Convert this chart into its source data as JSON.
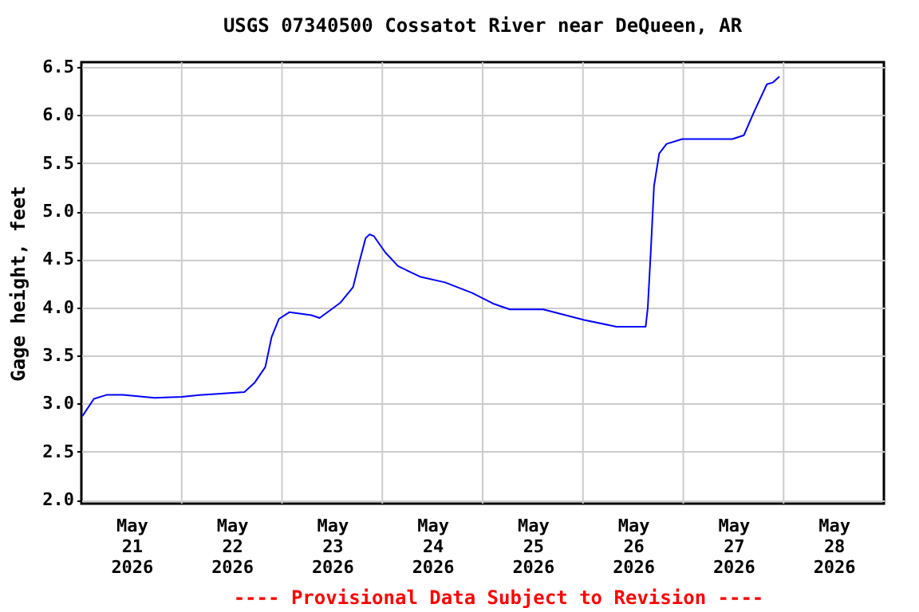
{
  "chart_data": {
    "type": "line",
    "title": "USGS 07340500 Cossatot River near DeQueen, AR",
    "ylabel": "Gage height, feet",
    "annotations": [
      "---- Provisional Data Subject to Revision ----"
    ],
    "x": [
      "2026-05-21T00:15",
      "2026-05-21T03:00",
      "2026-05-21T06:00",
      "2026-05-21T10:00",
      "2026-05-21T17:30",
      "2026-05-22T00:00",
      "2026-05-22T04:45",
      "2026-05-22T15:00",
      "2026-05-22T17:30",
      "2026-05-22T20:00",
      "2026-05-22T21:30",
      "2026-05-22T23:15",
      "2026-05-23T01:45",
      "2026-05-23T07:00",
      "2026-05-23T09:00",
      "2026-05-23T14:00",
      "2026-05-23T17:00",
      "2026-05-23T18:15",
      "2026-05-23T20:00",
      "2026-05-23T21:00",
      "2026-05-23T22:00",
      "2026-05-24T00:45",
      "2026-05-24T03:45",
      "2026-05-24T09:00",
      "2026-05-24T15:00",
      "2026-05-24T21:30",
      "2026-05-25T02:30",
      "2026-05-25T06:30",
      "2026-05-25T14:30",
      "2026-05-26T00:15",
      "2026-05-26T08:00",
      "2026-05-26T15:00",
      "2026-05-26T15:30",
      "2026-05-26T16:15",
      "2026-05-26T17:00",
      "2026-05-26T18:15",
      "2026-05-26T20:00",
      "2026-05-26T23:45",
      "2026-05-27T11:45",
      "2026-05-27T14:30",
      "2026-05-27T17:00",
      "2026-05-27T20:00",
      "2026-05-27T21:30",
      "2026-05-27T23:00"
    ],
    "series": [
      {
        "color": "#0000ff",
        "values": [
          2.87,
          3.05,
          3.09,
          3.09,
          3.06,
          3.07,
          3.09,
          3.12,
          3.22,
          3.38,
          3.69,
          3.88,
          3.95,
          3.92,
          3.89,
          4.05,
          4.21,
          4.43,
          4.72,
          4.76,
          4.74,
          4.57,
          4.43,
          4.32,
          4.26,
          4.15,
          4.04,
          3.98,
          3.98,
          3.87,
          3.8,
          3.8,
          3.99,
          4.6,
          5.26,
          5.6,
          5.7,
          5.75,
          5.75,
          5.79,
          6.04,
          6.32,
          6.34,
          6.4
        ]
      }
    ],
    "xlim": [
      "2026-05-21T00:00",
      "2026-05-29T00:00"
    ],
    "xticks": [
      {
        "value": "2026-05-21T12:00",
        "label": "May\n21\n2026"
      },
      {
        "value": "2026-05-22T00:00",
        "label": null
      },
      {
        "value": "2026-05-22T12:00",
        "label": "May\n22\n2026"
      },
      {
        "value": "2026-05-23T00:00",
        "label": null
      },
      {
        "value": "2026-05-23T12:00",
        "label": "May\n23\n2026"
      },
      {
        "value": "2026-05-24T00:00",
        "label": null
      },
      {
        "value": "2026-05-24T12:00",
        "label": "May\n24\n2026"
      },
      {
        "value": "2026-05-25T00:00",
        "label": null
      },
      {
        "value": "2026-05-25T12:00",
        "label": "May\n25\n2026"
      },
      {
        "value": "2026-05-26T00:00",
        "label": null
      },
      {
        "value": "2026-05-26T12:00",
        "label": "May\n26\n2026"
      },
      {
        "value": "2026-05-27T00:00",
        "label": null
      },
      {
        "value": "2026-05-27T12:00",
        "label": "May\n27\n2026"
      },
      {
        "value": "2026-05-28T00:00",
        "label": null
      },
      {
        "value": "2026-05-28T12:00",
        "label": "May\n28\n2026"
      }
    ],
    "ylim": [
      1.96,
      6.55
    ],
    "yticks": [
      {
        "value": 2,
        "label": "2.0"
      },
      2.5,
      {
        "value": 3,
        "label": "3.0"
      },
      3.5,
      {
        "value": 4,
        "label": "4.0"
      },
      4.5,
      {
        "value": 5,
        "label": "5.0"
      },
      5.5,
      {
        "value": 6,
        "label": "6.0"
      },
      6.5
    ],
    "grid": true
  }
}
